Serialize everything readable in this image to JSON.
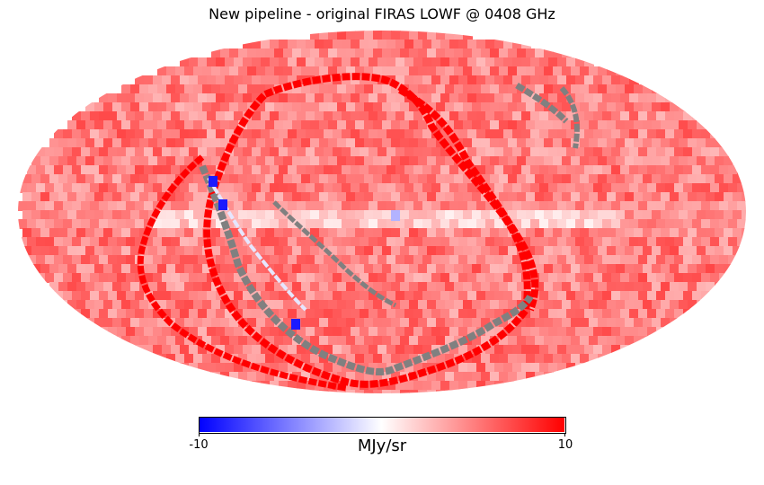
{
  "chart_data": {
    "type": "heatmap",
    "projection": "mollweide",
    "title": "New pipeline - original FIRAS LOWF @ 0408 GHz",
    "colormap": "bwr",
    "colorbar": {
      "vmin": -10,
      "vmax": 10,
      "ticks": [
        "-10",
        "10"
      ],
      "label": "MJy/sr",
      "orientation": "horizontal"
    },
    "colors": {
      "low": "#0000ff",
      "mid": "#ffffff",
      "high": "#ff0000",
      "bad_pixel": "#808080"
    },
    "background_level": 5,
    "features": [
      {
        "name": "galactic-plane",
        "value": 0.5
      },
      {
        "name": "scan-ring-west",
        "value": 10
      },
      {
        "name": "scan-ring-east",
        "value": 10
      },
      {
        "name": "masked-band",
        "value": null
      }
    ]
  }
}
